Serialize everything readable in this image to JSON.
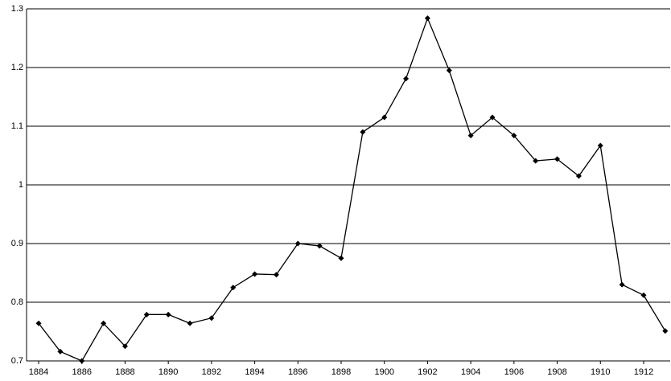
{
  "chart_data": {
    "type": "line",
    "x": [
      1884,
      1885,
      1886,
      1887,
      1888,
      1889,
      1890,
      1891,
      1892,
      1893,
      1894,
      1895,
      1896,
      1897,
      1898,
      1899,
      1900,
      1901,
      1902,
      1903,
      1904,
      1905,
      1906,
      1907,
      1908,
      1909,
      1910,
      1911,
      1912,
      1913
    ],
    "values": [
      0.764,
      0.716,
      0.7,
      0.764,
      0.725,
      0.779,
      0.779,
      0.764,
      0.773,
      0.825,
      0.848,
      0.847,
      0.9,
      0.896,
      0.875,
      1.09,
      1.115,
      1.181,
      1.284,
      1.195,
      1.084,
      1.115,
      1.084,
      1.041,
      1.044,
      1.015,
      1.067,
      0.83,
      0.812,
      0.751
    ],
    "color": "#000000",
    "xlim": [
      1883.44,
      1913.23
    ],
    "xticks": [
      1884,
      1886,
      1888,
      1890,
      1892,
      1894,
      1896,
      1898,
      1900,
      1902,
      1904,
      1906,
      1908,
      1910,
      1912
    ],
    "ylim": [
      0.7,
      1.3
    ],
    "yticks": [
      0.7,
      0.8,
      0.9,
      1,
      1.1,
      1.2,
      1.3
    ],
    "grid": true
  }
}
